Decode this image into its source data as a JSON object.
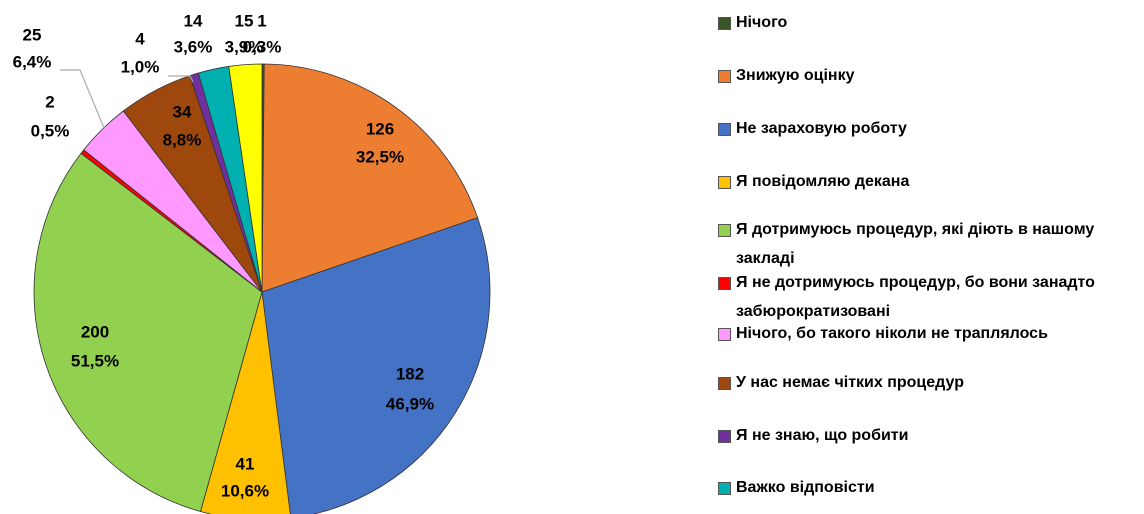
{
  "chart_data": {
    "type": "pie",
    "categories": [
      "Нічого",
      "Знижую оцінку",
      "Не зараховую роботу",
      "Я повідомляю декана",
      "Я дотримуюсь процедур, які діють в нашому закладі",
      "Я не дотримуюсь процедур, бо вони занадто забюрократизовані",
      "Нічого, бо такого ніколи не траплялось",
      "У нас немає чітких процедур",
      "Я не знаю, що робити",
      "Важко відповісти",
      null
    ],
    "values": [
      1,
      126,
      182,
      41,
      200,
      2,
      25,
      34,
      4,
      14,
      15
    ],
    "percentages": [
      "0,3%",
      "32,5%",
      "46,9%",
      "10,6%",
      "51,5%",
      "0,5%",
      "6,4%",
      "8,8%",
      "1,0%",
      "3,6%",
      "3,9%"
    ],
    "colors": [
      "#375623",
      "#ED7D31",
      "#4472C4",
      "#FFC000",
      "#92D050",
      "#FF0000",
      "#FF99FF",
      "#9E480E",
      "#7030A0",
      "#00B0B0",
      "#FFFF00"
    ]
  }
}
